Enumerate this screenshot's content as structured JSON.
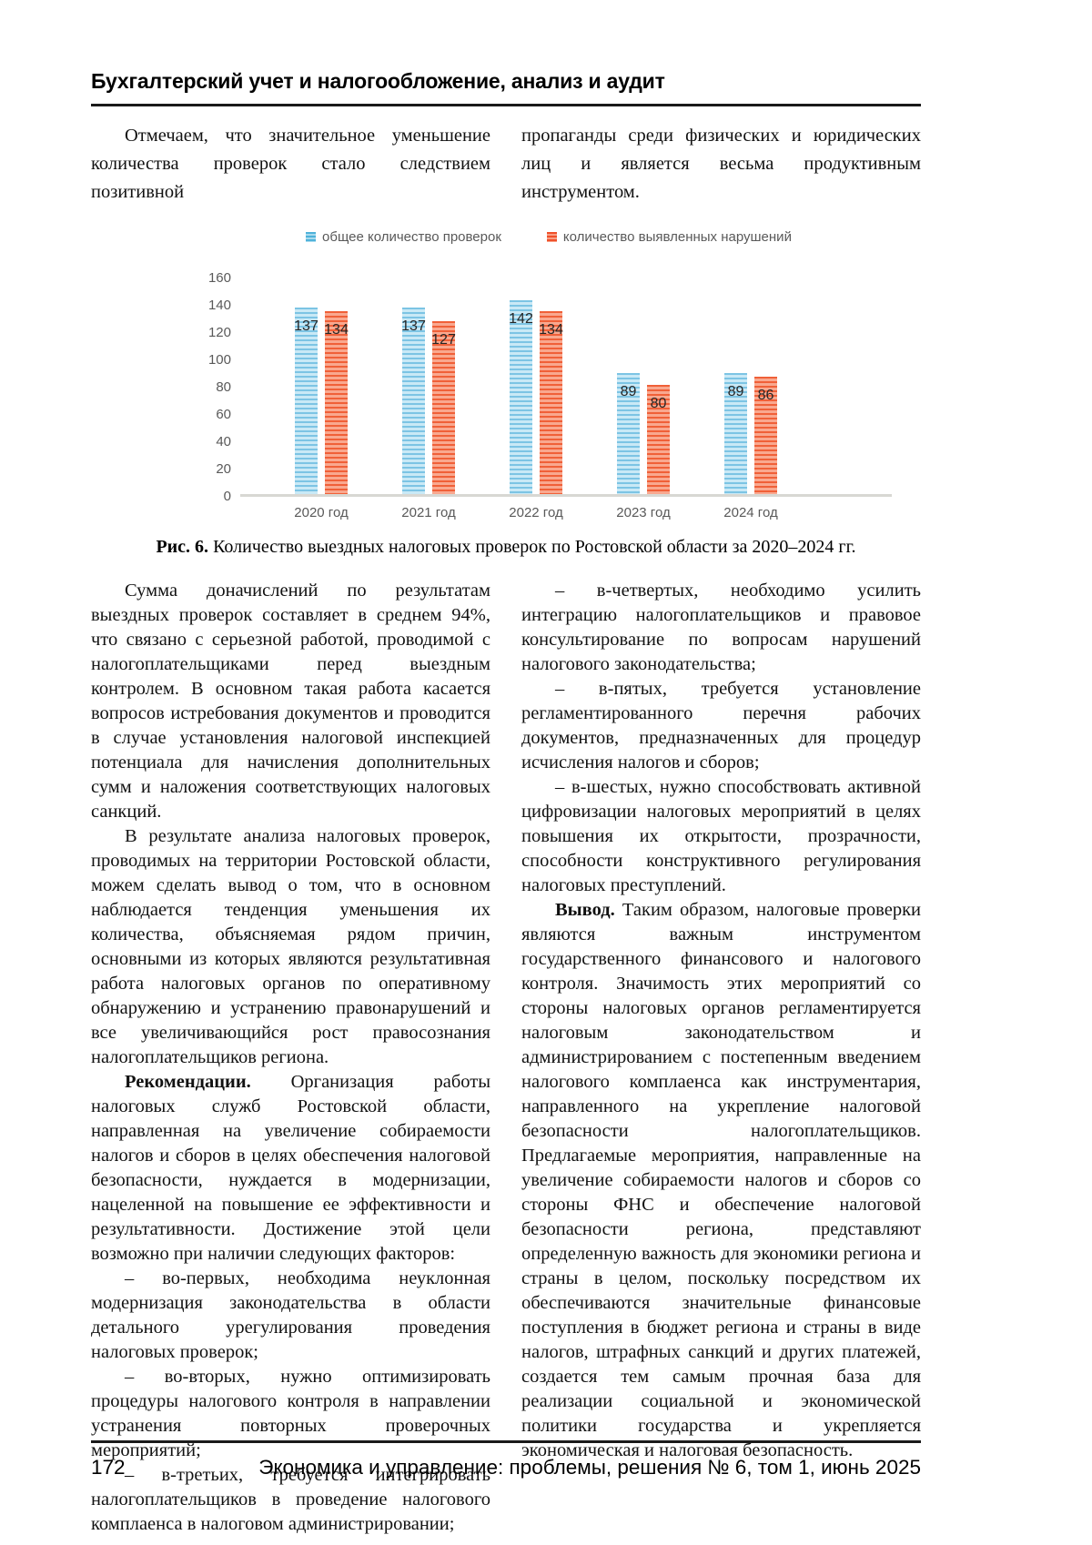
{
  "header": {
    "section_title": "Бухгалтерский учет и налогообложение, анализ и аудит"
  },
  "intro": {
    "left_column": "Отмечаем, что значительное уменьшение количества проверок стало следствием позитивной",
    "right_column": "пропаганды среди физических и юридических лиц и является весьма продуктивным инструментом."
  },
  "chart_data": {
    "type": "bar",
    "title": "",
    "categories": [
      "2020 год",
      "2021 год",
      "2022 год",
      "2023 год",
      "2024 год"
    ],
    "series": [
      {
        "name": "общее количество проверок",
        "values": [
          137,
          137,
          142,
          89,
          89
        ],
        "color": "#7cc4e4"
      },
      {
        "name": "количество выявленных нарушений",
        "values": [
          134,
          127,
          134,
          80,
          86
        ],
        "color": "#f0502a"
      }
    ],
    "ylim": [
      0,
      160
    ],
    "ytick_step": 20,
    "grid": false,
    "legend_position": "top",
    "bar_texture": "horizontal-stripes",
    "axis_text_color": "#595959",
    "baseline_color": "#d8d8d3"
  },
  "figure": {
    "caption_label": "Рис. 6.",
    "caption_text": "Количество выездных налоговых проверок по Ростовской области за 2020–2024 гг."
  },
  "body": {
    "left_paragraphs": [
      {
        "lead": "",
        "text": "Сумма доначислений по результатам выездных проверок составляет в среднем 94%, что связано с серьезной работой, проводимой с налогоплательщиками перед выездным контролем. В основном такая работа касается вопросов истребования документов и проводится в случае установления налоговой инспекцией потенциала для начисления дополнительных сумм и наложения соответствующих налоговых санкций."
      },
      {
        "lead": "",
        "text": "В результате анализа налоговых проверок, проводимых на территории Ростовской области, можем сделать вывод о том, что в основном наблюдается тенденция уменьшения их количества, объясняемая рядом причин, основными из которых являются результативная работа налоговых органов по оперативному обнаружению и устранению правонарушений и все увеличивающийся рост правосознания налогоплательщиков региона."
      },
      {
        "lead": "Рекомендации.",
        "text": "Организация работы налоговых служб Ростовской области, направленная на увеличение собираемости налогов и сборов в целях обеспечения налоговой безопасности, нуждается в модернизации, нацеленной на повышение ее эффективности и результативности. Достижение этой цели возможно при наличии следующих факторов:"
      },
      {
        "lead": "",
        "text": "– во-первых, необходима неуклонная модернизация законодательства в области детального урегулирования проведения налоговых проверок;"
      },
      {
        "lead": "",
        "text": "– во-вторых, нужно оптимизировать процедуры налогового контроля в направлении устранения повторных проверочных мероприятий;"
      },
      {
        "lead": "",
        "text": "– в-третьих, требуется интегрировать налогоплательщиков в проведение налогового комплаенса в налоговом администрировании;"
      }
    ],
    "right_paragraphs": [
      {
        "lead": "",
        "text": "– в-четвертых, необходимо усилить интеграцию налогоплательщиков и правовое консультирование по вопросам нарушений налогового законодательства;"
      },
      {
        "lead": "",
        "text": "– в-пятых, требуется установление регламентированного перечня рабочих документов, предназначенных для процедур исчисления налогов и сборов;"
      },
      {
        "lead": "",
        "text": "– в-шестых, нужно способствовать активной цифровизации налоговых мероприятий в целях повышения их открытости, прозрачности, способности конструктивного регулирования налоговых преступлений."
      },
      {
        "lead": "Вывод.",
        "text": "Таким образом, налоговые проверки являются важным инструментом государственного финансового и налогового контроля. Значимость этих мероприятий со стороны налоговых органов регламентируется налоговым законодательством и администрированием с постепенным введением налогового комплаенса как инструментария, направленного на укрепление налоговой безопасности налогоплательщиков. Предлагаемые мероприятия, направленные на увеличение собираемости налогов и сборов со стороны ФНС и обеспечение налоговой безопасности региона, представляют определенную важность для экономики региона и страны в целом, поскольку посредством их обеспечиваются значительные финансовые поступления в бюджет региона и страны в виде налогов, штрафных санкций и других платежей, создается тем самым прочная база для реализации социальной и экономической политики государства и укрепляется экономическая и налоговая безопасность."
      }
    ]
  },
  "footer": {
    "page_number": "172",
    "journal_line": "Экономика и управление: проблемы, решения № 6, том 1, июнь 2025"
  }
}
